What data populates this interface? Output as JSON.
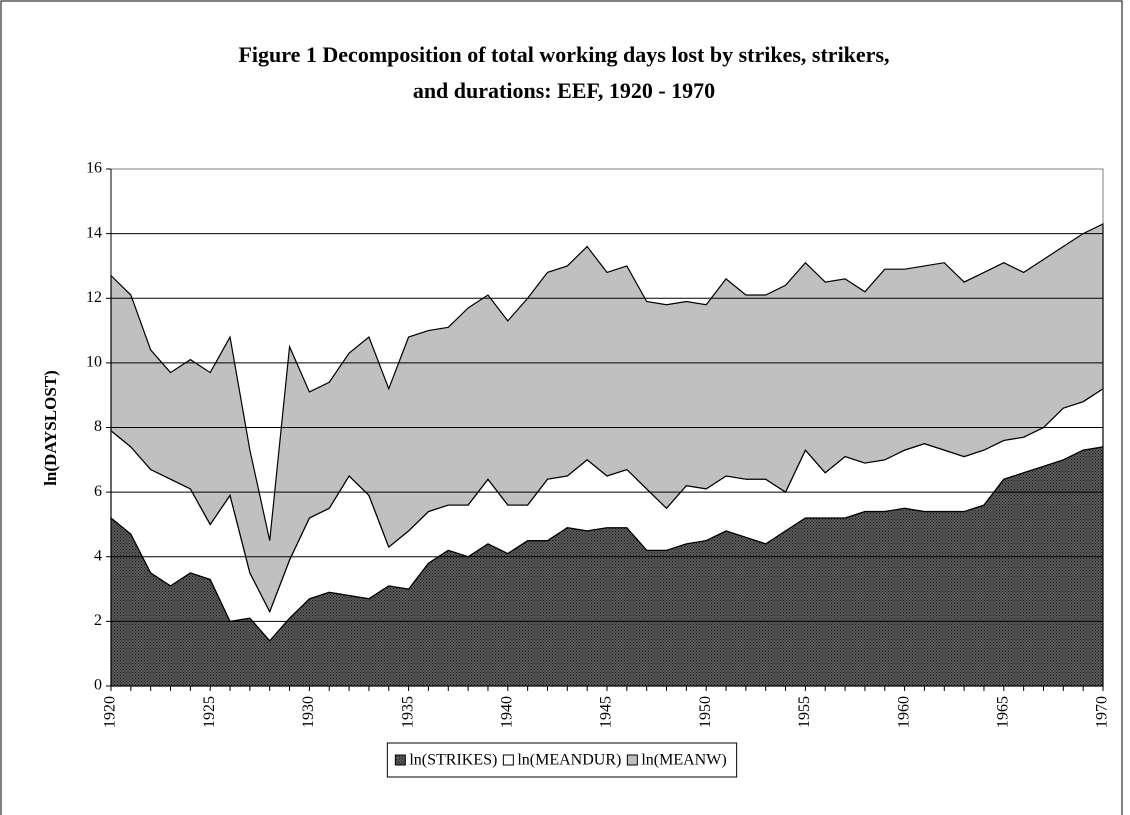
{
  "chart_data": {
    "type": "stacked-area",
    "title": [
      "Figure 1  Decomposition of total working days lost by strikes, strikers,",
      "and durations:  EEF, 1920 - 1970"
    ],
    "ylabel": "ln(DAYSLOST)",
    "x": [
      1920,
      1921,
      1922,
      1923,
      1924,
      1925,
      1926,
      1927,
      1928,
      1929,
      1930,
      1931,
      1932,
      1933,
      1934,
      1935,
      1936,
      1937,
      1938,
      1939,
      1940,
      1941,
      1942,
      1943,
      1944,
      1945,
      1946,
      1947,
      1948,
      1949,
      1950,
      1951,
      1952,
      1953,
      1954,
      1955,
      1956,
      1957,
      1958,
      1959,
      1960,
      1961,
      1962,
      1963,
      1964,
      1965,
      1966,
      1967,
      1968,
      1969,
      1970
    ],
    "series": [
      {
        "name": "ln(STRIKES)",
        "color": "#5a5a5a",
        "values": [
          5.2,
          4.7,
          3.5,
          3.1,
          3.5,
          3.3,
          2.0,
          2.1,
          1.4,
          2.1,
          2.7,
          2.9,
          2.8,
          2.7,
          3.1,
          3.0,
          3.8,
          4.2,
          4.0,
          4.4,
          4.1,
          4.5,
          4.5,
          4.9,
          4.8,
          4.9,
          4.9,
          4.2,
          4.2,
          4.4,
          4.5,
          4.8,
          4.6,
          4.4,
          4.8,
          5.2,
          5.2,
          5.2,
          5.4,
          5.4,
          5.5,
          5.4,
          5.4,
          5.4,
          5.6,
          6.4,
          6.6,
          6.8,
          7.0,
          7.3,
          7.4
        ]
      },
      {
        "name": "ln(MEANDUR)",
        "color": "#ffffff",
        "values": [
          2.7,
          2.7,
          3.2,
          3.3,
          2.6,
          1.7,
          3.9,
          1.4,
          0.9,
          1.8,
          2.5,
          2.6,
          3.7,
          3.2,
          1.2,
          1.8,
          1.6,
          1.4,
          1.6,
          2.0,
          1.5,
          1.1,
          1.9,
          1.6,
          2.2,
          1.6,
          1.8,
          1.9,
          1.3,
          1.8,
          1.6,
          1.7,
          1.8,
          2.0,
          1.2,
          2.1,
          1.4,
          1.9,
          1.5,
          1.6,
          1.8,
          2.1,
          1.9,
          1.7,
          1.7,
          1.2,
          1.1,
          1.2,
          1.6,
          1.5,
          1.8
        ]
      },
      {
        "name": "ln(MEANW)",
        "color": "#c0c0c0",
        "values": [
          4.8,
          4.7,
          3.7,
          3.3,
          4.0,
          4.7,
          4.9,
          3.8,
          2.2,
          6.6,
          3.9,
          3.9,
          3.8,
          4.9,
          4.9,
          6.0,
          5.6,
          5.5,
          6.1,
          5.7,
          5.7,
          6.4,
          6.4,
          6.5,
          6.6,
          6.3,
          6.3,
          5.8,
          6.3,
          5.7,
          5.7,
          6.1,
          5.7,
          5.7,
          6.4,
          5.8,
          5.9,
          5.5,
          5.3,
          5.9,
          5.6,
          5.5,
          5.8,
          5.4,
          5.5,
          5.5,
          5.1,
          5.2,
          5.0,
          5.2,
          5.1
        ]
      }
    ],
    "xlim": [
      1920,
      1970
    ],
    "xticks": [
      1920,
      1925,
      1930,
      1935,
      1940,
      1945,
      1950,
      1955,
      1960,
      1965,
      1970
    ],
    "ylim": [
      0,
      16
    ],
    "yticks": [
      0,
      2,
      4,
      6,
      8,
      10,
      12,
      14,
      16
    ],
    "grid": true,
    "legend": "bottom"
  }
}
